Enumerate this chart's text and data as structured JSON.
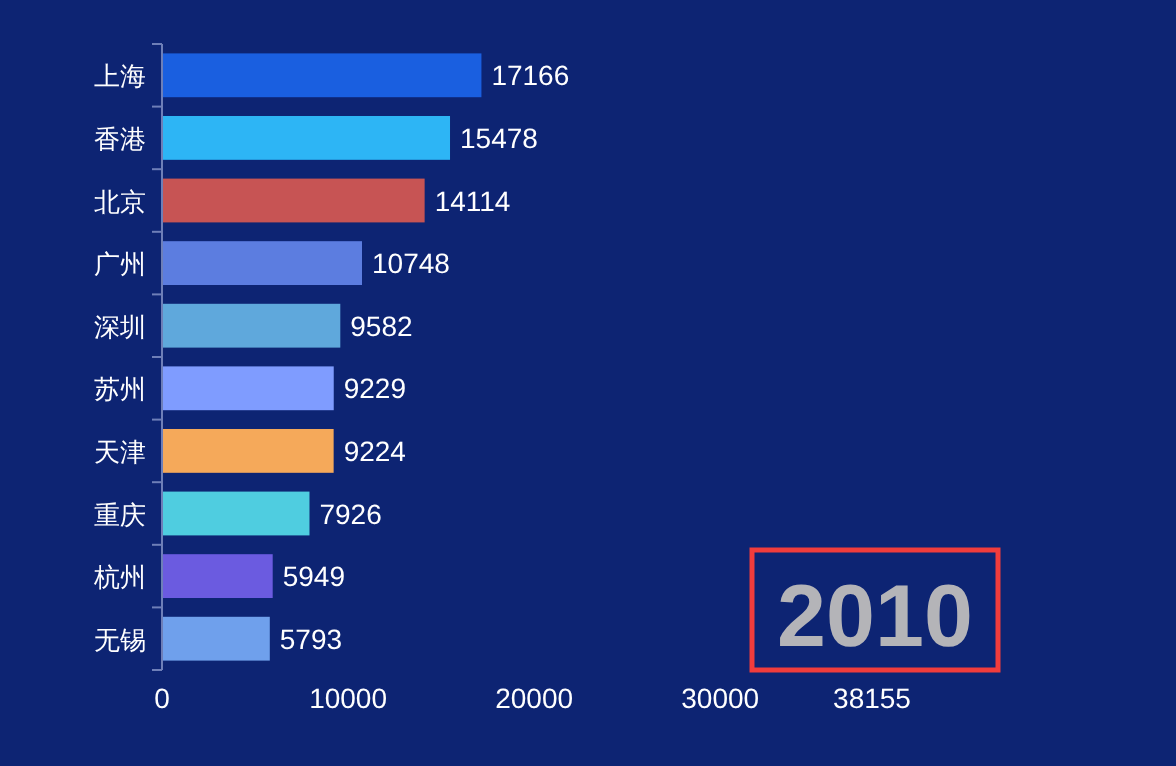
{
  "chart_data": {
    "type": "bar",
    "orientation": "horizontal",
    "categories": [
      "上海",
      "香港",
      "北京",
      "广州",
      "深圳",
      "苏州",
      "天津",
      "重庆",
      "杭州",
      "无锡"
    ],
    "values": [
      17166,
      15478,
      14114,
      10748,
      9582,
      9229,
      9224,
      7926,
      5949,
      5793
    ],
    "colors": [
      "#1a5fe0",
      "#2db5f5",
      "#c75454",
      "#5c7de0",
      "#5fa8dc",
      "#7f9cff",
      "#f5a95a",
      "#4fcde0",
      "#6b5be0",
      "#6fa0ec"
    ],
    "xlim": [
      0,
      38155
    ],
    "xticks": [
      0,
      10000,
      20000,
      30000,
      38155
    ],
    "data_labels": true,
    "annotations": [
      "2010"
    ]
  }
}
